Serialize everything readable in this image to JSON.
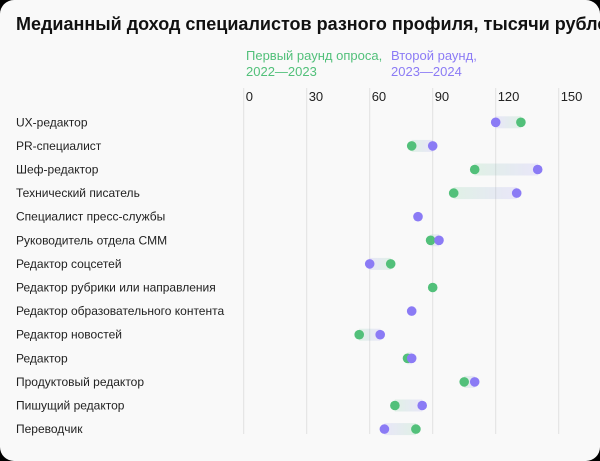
{
  "chart_data": {
    "type": "dumbbell",
    "title": "Медианный доход специалистов разного профиля, тысячи рублей",
    "xlim": [
      0,
      150
    ],
    "xticks": [
      0,
      30,
      60,
      90,
      120,
      150
    ],
    "grid": true,
    "legend_placement": "top",
    "colors": {
      "first": "#52c07a",
      "second": "#8b7bf5"
    },
    "series": [
      {
        "name": "Первый раунд опроса, 2022—2023",
        "legend_lines": [
          "Первый раунд опроса,",
          "2022—2023"
        ],
        "key": "first"
      },
      {
        "name": "Второй раунд, 2023—2024",
        "legend_lines": [
          "Второй раунд,",
          "2023—2024"
        ],
        "key": "second"
      }
    ],
    "categories": [
      "UX-редактор",
      "PR-специалист",
      "Шеф-редактор",
      "Технический писатель",
      "Специалист пресс-службы",
      "Руководитель отдела CMM",
      "Редактор соцсетей",
      "Редактор рубрики или направления",
      "Редактор образовательного контента",
      "Редактор новостей",
      "Редактор",
      "Продуктовый редактор",
      "Пишущий редактор",
      "Переводчик"
    ],
    "first": [
      132,
      80,
      110,
      100,
      null,
      89,
      70,
      90,
      null,
      55,
      78,
      105,
      72,
      82
    ],
    "second": [
      120,
      90,
      140,
      130,
      83,
      93,
      60,
      null,
      80,
      65,
      80,
      110,
      85,
      67
    ]
  }
}
